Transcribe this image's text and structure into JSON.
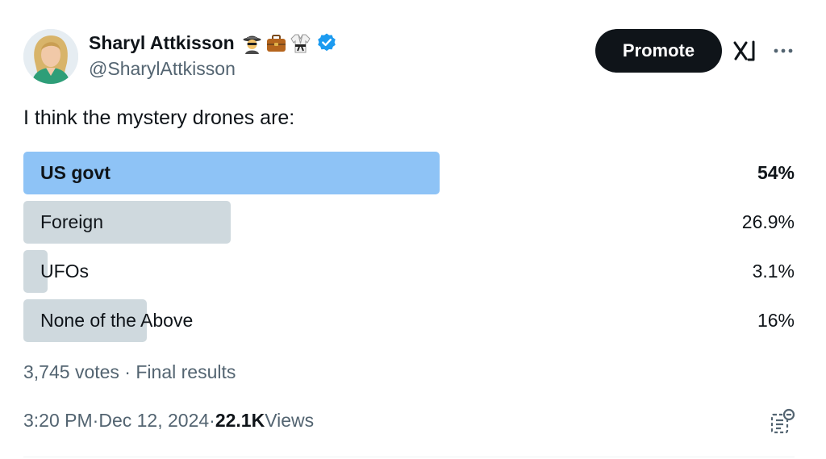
{
  "author": {
    "display_name": "Sharyl Attkisson",
    "handle": "@SharylAttkisson",
    "emojis": [
      "spy-emoji",
      "briefcase-emoji",
      "martial-arts-uniform-emoji"
    ],
    "verified": true,
    "verified_color": "#1d9bf0"
  },
  "header": {
    "promote_label": "Promote"
  },
  "tweet": {
    "text": "I think the mystery drones are:"
  },
  "poll": {
    "options": [
      {
        "label": "US govt",
        "percent_text": "54%",
        "percent": 54,
        "winner": true
      },
      {
        "label": "Foreign",
        "percent_text": "26.9%",
        "percent": 26.9,
        "winner": false
      },
      {
        "label": "UFOs",
        "percent_text": "3.1%",
        "percent": 3.1,
        "winner": false
      },
      {
        "label": "None of the Above",
        "percent_text": "16%",
        "percent": 16,
        "winner": false
      }
    ],
    "votes": "3,745 votes",
    "separator": " · ",
    "status": "Final results",
    "winner_color": "#8ec3f6",
    "bar_color": "#cfd9de"
  },
  "meta": {
    "time": "3:20 PM",
    "separator": " · ",
    "date": "Dec 12, 2024",
    "views_count": "22.1K",
    "views_label": " Views"
  },
  "icons": {
    "grok": "grok-icon",
    "more": "more-icon",
    "analytics": "analytics-icon"
  }
}
